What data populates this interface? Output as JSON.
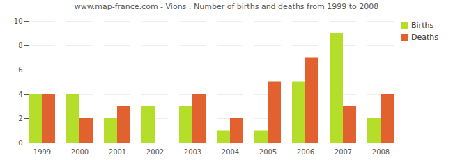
{
  "chart_data": {
    "type": "bar",
    "title": "www.map-france.com - Vions : Number of births and deaths from 1999 to 2008",
    "categories": [
      "1999",
      "2000",
      "2001",
      "2002",
      "2003",
      "2004",
      "2005",
      "2006",
      "2007",
      "2008"
    ],
    "series": [
      {
        "name": "Births",
        "color": "#b5de2a",
        "values": [
          4,
          4,
          2,
          3,
          3,
          1,
          1,
          5,
          9,
          2
        ]
      },
      {
        "name": "Deaths",
        "color": "#e1622f",
        "values": [
          4,
          2,
          3,
          0,
          4,
          2,
          5,
          7,
          3,
          4
        ]
      }
    ],
    "ylim": [
      0,
      10
    ],
    "yticks": [
      0,
      2,
      4,
      6,
      8,
      10
    ],
    "grid": true,
    "legend": "right"
  }
}
